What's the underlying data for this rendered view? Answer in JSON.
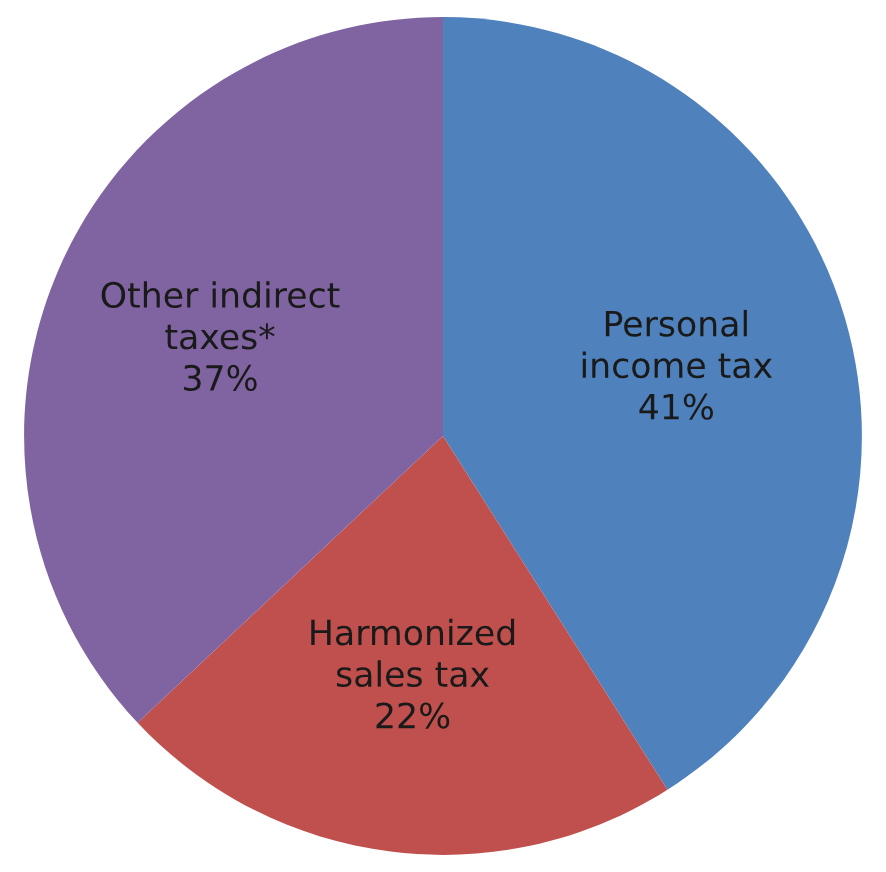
{
  "chart_data": {
    "type": "pie",
    "categories": [
      "Personal\nincome tax",
      "Harmonized\nsales tax",
      "Other indirect\ntaxes*"
    ],
    "values": [
      41,
      22,
      37
    ],
    "colors": [
      "#4f81bd",
      "#c0504d",
      "#8064a2"
    ],
    "value_labels": [
      "41%",
      "22%",
      "37%"
    ]
  }
}
